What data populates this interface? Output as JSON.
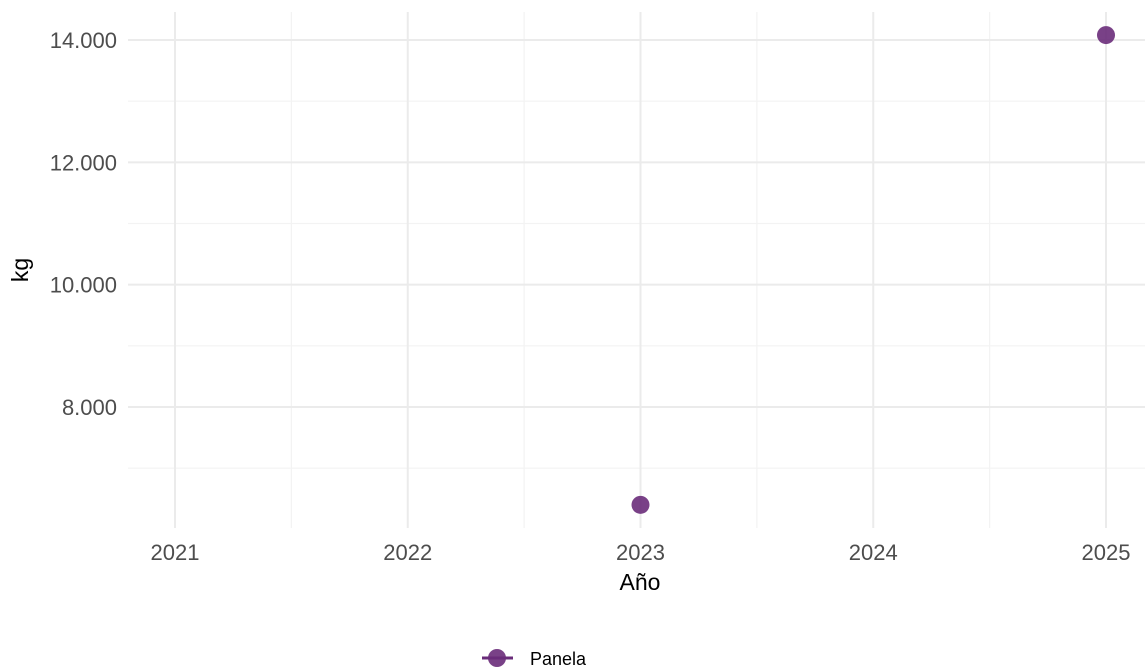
{
  "chart_data": {
    "type": "scatter",
    "title": "",
    "xlabel": "Año",
    "ylabel": "kg",
    "xlim": [
      2020.8,
      2025.2
    ],
    "ylim": [
      6000,
      14500
    ],
    "x_ticks": [
      {
        "value": 2021,
        "label": "2021"
      },
      {
        "value": 2022,
        "label": "2022"
      },
      {
        "value": 2023,
        "label": "2023"
      },
      {
        "value": 2024,
        "label": "2024"
      },
      {
        "value": 2025,
        "label": "2025"
      }
    ],
    "y_ticks": [
      {
        "value": 8000,
        "label": "8.000"
      },
      {
        "value": 10000,
        "label": "10.000"
      },
      {
        "value": 12000,
        "label": "12.000"
      },
      {
        "value": 14000,
        "label": "14.000"
      }
    ],
    "grid": true,
    "legend_position": "bottom",
    "series": [
      {
        "name": "Panela",
        "color": "#6a2c7a",
        "points": [
          {
            "x": 2023,
            "y": 6400
          },
          {
            "x": 2025,
            "y": 14080
          }
        ]
      }
    ]
  }
}
